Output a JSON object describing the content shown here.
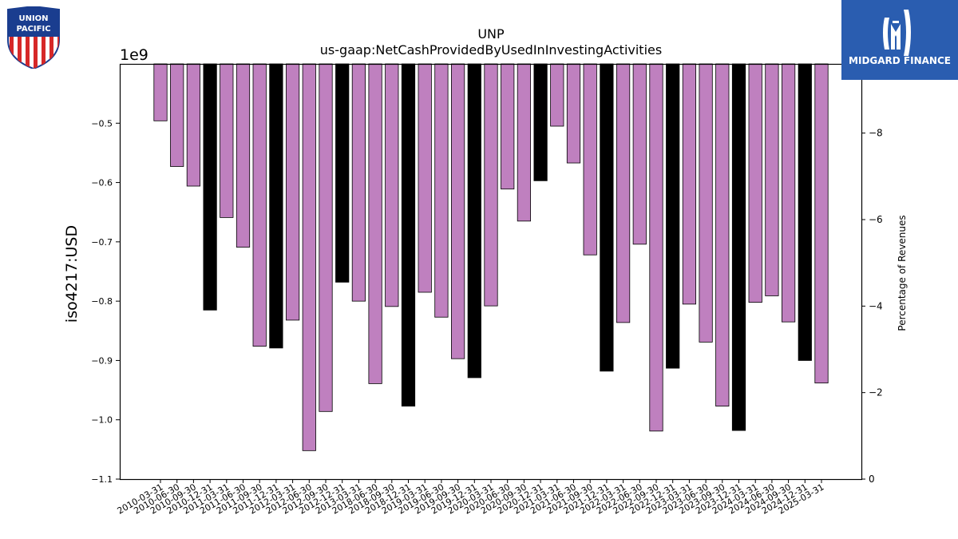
{
  "logos": {
    "left_text_top": "UNION",
    "left_text_bottom": "PACIFIC",
    "right_text": "MIDGARD FINANCE"
  },
  "chart_data": {
    "type": "bar",
    "title": "UNP",
    "subtitle": "us-gaap:NetCashProvidedByUsedInInvestingActivities",
    "ylabel": "iso4217:USD",
    "ylabel2": "Percentage of Revenues",
    "y_offset_text": "1e9",
    "ylim": [
      -1.1,
      -0.4
    ],
    "yticks": [
      -0.5,
      -0.6,
      -0.7,
      -0.8,
      -0.9,
      -1.0,
      -1.1
    ],
    "ytick_labels": [
      "−0.5",
      "−0.6",
      "−0.7",
      "−0.8",
      "−0.9",
      "−1.0",
      "−1.1"
    ],
    "y2lim": [
      0,
      -9.6
    ],
    "y2ticks": [
      0,
      -2,
      -4,
      -6,
      -8
    ],
    "y2tick_labels": [
      "0",
      "−2",
      "−4",
      "−6",
      "−8"
    ],
    "categories": [
      "2010-03-31",
      "2010-06-30",
      "2010-09-30",
      "2010-12-31",
      "2011-03-31",
      "2011-06-30",
      "2011-09-30",
      "2011-12-31",
      "2012-03-31",
      "2012-06-30",
      "2012-09-30",
      "2012-12-31",
      "2013-03-31",
      "2018-06-30",
      "2018-09-30",
      "2018-12-31",
      "2019-03-31",
      "2019-06-30",
      "2019-09-30",
      "2019-12-31",
      "2020-03-31",
      "2020-06-30",
      "2020-09-30",
      "2020-12-31",
      "2021-03-31",
      "2021-06-30",
      "2021-09-30",
      "2021-12-31",
      "2022-03-31",
      "2022-06-30",
      "2022-09-30",
      "2022-12-31",
      "2023-03-31",
      "2023-06-30",
      "2023-09-30",
      "2023-12-31",
      "2024-03-31",
      "2024-06-30",
      "2024-09-30",
      "2024-12-31",
      "2025-03-31"
    ],
    "values": [
      -0.496,
      -0.573,
      -0.606,
      -0.815,
      -0.659,
      -0.709,
      -0.876,
      -0.879,
      -0.832,
      -1.052,
      -0.986,
      -0.768,
      -0.8,
      -0.939,
      -0.809,
      -0.977,
      -0.785,
      -0.827,
      -0.897,
      -0.929,
      -0.808,
      -0.611,
      -0.665,
      -0.597,
      -0.505,
      -0.567,
      -0.722,
      -0.918,
      -0.836,
      -0.704,
      -1.019,
      -0.913,
      -0.805,
      -0.869,
      -0.977,
      -1.018,
      -0.802,
      -0.791,
      -0.835,
      -0.9,
      -0.938
    ],
    "highlighted": [
      false,
      false,
      false,
      true,
      false,
      false,
      false,
      true,
      false,
      false,
      false,
      true,
      false,
      false,
      false,
      true,
      false,
      false,
      false,
      true,
      false,
      false,
      false,
      true,
      false,
      false,
      false,
      true,
      false,
      false,
      false,
      true,
      false,
      false,
      false,
      true,
      false,
      false,
      false,
      true,
      false
    ],
    "colors": {
      "bar": "#bf80bf",
      "highlight": "#000000",
      "edge": "#000000"
    }
  }
}
